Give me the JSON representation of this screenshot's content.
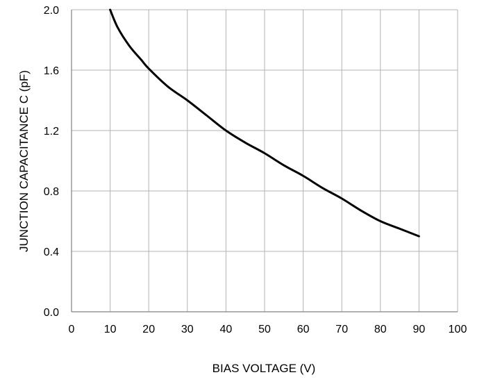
{
  "chart_data": {
    "type": "line",
    "title": "",
    "xlabel": "BIAS  VOLTAGE (V)",
    "ylabel": "JUNCTION  CAPACITANCE C (pF)",
    "xlim": [
      0,
      100
    ],
    "ylim": [
      0.0,
      2.0
    ],
    "xticks": [
      "0",
      "10",
      "20",
      "30",
      "40",
      "50",
      "60",
      "70",
      "80",
      "90",
      "100"
    ],
    "yticks": [
      "0.0",
      "0.4",
      "0.8",
      "1.2",
      "1.6",
      "2.0"
    ],
    "grid": true,
    "series": [
      {
        "x": [
          10,
          12,
          15,
          18,
          20,
          25,
          30,
          35,
          40,
          45,
          50,
          55,
          60,
          65,
          70,
          75,
          80,
          85,
          90
        ],
        "values": [
          2.0,
          1.88,
          1.76,
          1.67,
          1.61,
          1.49,
          1.4,
          1.3,
          1.2,
          1.12,
          1.05,
          0.97,
          0.9,
          0.82,
          0.75,
          0.67,
          0.6,
          0.55,
          0.5
        ]
      }
    ],
    "colors": {
      "line": "#000000",
      "grid": "#b3b3b3",
      "axis": "#808080"
    }
  }
}
